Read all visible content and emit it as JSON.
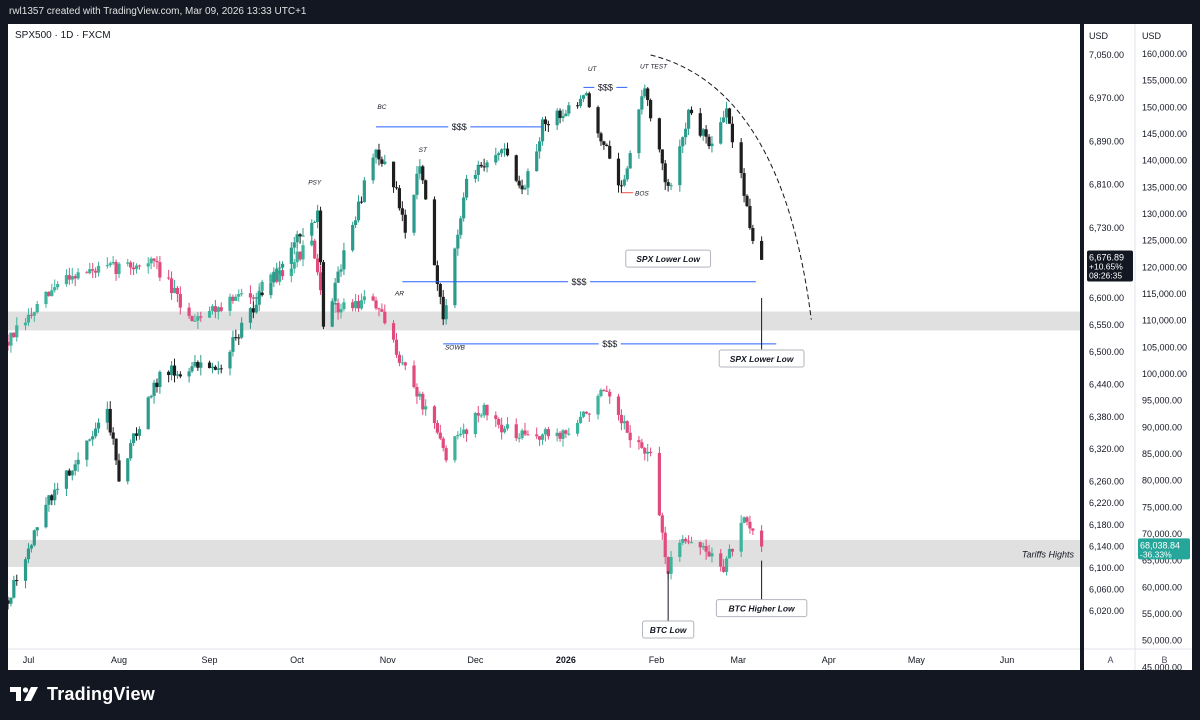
{
  "header": {
    "attribution": "rwl1357 created with TradingView.com, Mar 09, 2026 13:33 UTC+1"
  },
  "symbol": {
    "label": "SPX500 · 1D · FXCM"
  },
  "footer": {
    "logo_text": "TradingView"
  },
  "colors": {
    "up": "#26a69a",
    "down": "#ef5350",
    "spx_up": "#2b9b8c",
    "spx_down": "#1e1e1e",
    "btc_up": "#3cb39b",
    "btc_down": "#e14a7c",
    "zone": "#d8d8d8",
    "liquidity_line": "#2962ff"
  },
  "chart_data": {
    "type": "candlestick",
    "title": "SPX500 · 1D · FXCM",
    "x_ticks": [
      "Jul",
      "Aug",
      "Sep",
      "Oct",
      "Nov",
      "Dec",
      "2026",
      "Feb",
      "Mar",
      "Apr",
      "May",
      "Jun"
    ],
    "x_range": [
      "2025-06-24",
      "2026-06-26"
    ],
    "left_axis": {
      "unit": "USD",
      "ticks": [
        "7,050.00",
        "6,970.00",
        "6,890.00",
        "6,810.00",
        "6,730.00",
        "6,600.00",
        "6,550.00",
        "6,500.00",
        "6,440.00",
        "6,380.00",
        "6,320.00",
        "6,260.00",
        "6,220.00",
        "6,180.00",
        "6,140.00",
        "6,100.00",
        "6,060.00",
        "6,020.00"
      ]
    },
    "right_axis": {
      "unit": "USD",
      "ticks": [
        "160,000.00",
        "155,000.00",
        "150,000.00",
        "145,000.00",
        "140,000.00",
        "135,000.00",
        "130,000.00",
        "125,000.00",
        "120,000.00",
        "115,000.00",
        "110,000.00",
        "105,000.00",
        "100,000.00",
        "95,000.00",
        "90,000.00",
        "85,000.00",
        "80,000.00",
        "75,000.00",
        "70,000.00",
        "65,000.00",
        "60,000.00",
        "55,000.00",
        "50,000.00",
        "45,000.00"
      ]
    },
    "scale_labels": {
      "left": "A",
      "right": "B"
    },
    "series": [
      {
        "name": "SPX500",
        "axis": "left",
        "anchors": [
          [
            "2025-06-24",
            6040
          ],
          [
            "2025-07-07",
            6215
          ],
          [
            "2025-07-28",
            6385
          ],
          [
            "2025-08-01",
            6270
          ],
          [
            "2025-08-15",
            6460
          ],
          [
            "2025-09-05",
            6480
          ],
          [
            "2025-09-22",
            6640
          ],
          [
            "2025-10-08",
            6760
          ],
          [
            "2025-10-10",
            6550
          ],
          [
            "2025-10-28",
            6880
          ],
          [
            "2025-11-04",
            6800
          ],
          [
            "2025-11-07",
            6720
          ],
          [
            "2025-11-12",
            6850
          ],
          [
            "2025-11-20",
            6560
          ],
          [
            "2025-11-28",
            6820
          ],
          [
            "2025-12-10",
            6880
          ],
          [
            "2025-12-17",
            6790
          ],
          [
            "2025-12-24",
            6920
          ],
          [
            "2026-01-08",
            6970
          ],
          [
            "2026-01-20",
            6800
          ],
          [
            "2026-01-28",
            6990
          ],
          [
            "2026-02-05",
            6800
          ],
          [
            "2026-02-12",
            6940
          ],
          [
            "2026-02-20",
            6880
          ],
          [
            "2026-02-25",
            6950
          ],
          [
            "2026-03-03",
            6800
          ],
          [
            "2026-03-06",
            6700
          ],
          [
            "2026-03-09",
            6660
          ]
        ],
        "last_value": "6,676.89",
        "last_change": "+10.65%",
        "countdown": "08:26:35"
      },
      {
        "name": "BTC",
        "axis": "right",
        "anchors": [
          [
            "2025-06-24",
            106000
          ],
          [
            "2025-07-14",
            118500
          ],
          [
            "2025-08-13",
            121000
          ],
          [
            "2025-08-25",
            110500
          ],
          [
            "2025-09-19",
            116000
          ],
          [
            "2025-10-06",
            124500
          ],
          [
            "2025-10-10",
            111500
          ],
          [
            "2025-10-27",
            114000
          ],
          [
            "2025-11-04",
            104500
          ],
          [
            "2025-11-21",
            85000
          ],
          [
            "2025-12-03",
            93500
          ],
          [
            "2025-12-15",
            88000
          ],
          [
            "2026-01-02",
            89000
          ],
          [
            "2026-01-14",
            96500
          ],
          [
            "2026-01-20",
            90500
          ],
          [
            "2026-01-30",
            84000
          ],
          [
            "2026-02-05",
            63000
          ],
          [
            "2026-02-10",
            70000
          ],
          [
            "2026-02-24",
            64000
          ],
          [
            "2026-03-03",
            72000
          ],
          [
            "2026-03-09",
            68000
          ]
        ],
        "last_value": "68,038.84",
        "last_change": "-36.33%"
      }
    ],
    "zones": [
      {
        "axis": "left",
        "from": 6540,
        "to": 6575,
        "label": ""
      },
      {
        "axis": "left",
        "from": 6102,
        "to": 6152,
        "label": "Tariffs Hights"
      }
    ],
    "liquidity_lines": [
      {
        "label": "$$$",
        "from": "2025-10-28",
        "to": "2025-12-24",
        "value": 6917
      },
      {
        "label": "$$$",
        "from": "2025-11-06",
        "to": "2026-03-07",
        "value": 6630
      },
      {
        "label": "$$$",
        "from": "2025-11-20",
        "to": "2026-03-14",
        "value": 6515
      },
      {
        "label": "$$$",
        "from": "2026-01-07",
        "to": "2026-01-22",
        "value": 6990
      },
      {
        "label": "",
        "from": "2026-01-20",
        "to": "2026-01-24",
        "value": 6795
      }
    ],
    "annotations": [
      "PSY",
      "BC",
      "ST",
      "AR",
      "SOWB",
      "UT",
      "UT TEST",
      "BOS"
    ],
    "callouts": [
      "SPX Lower Low",
      "SPX Lower Low",
      "BTC Low",
      "BTC Higher Low"
    ]
  }
}
